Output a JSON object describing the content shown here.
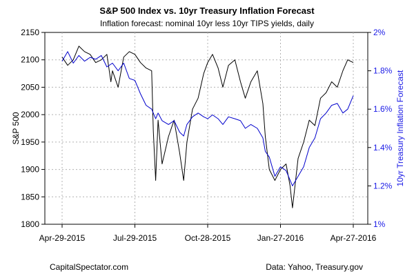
{
  "chart_data": {
    "type": "line",
    "title": "S&P 500 Index vs. 10yr Treasury Inflation Forecast",
    "subtitle": "Inflation forecast: nominal 10yr less 10yr TIPS yields, daily",
    "ylabel": "S&P 500",
    "y2label": "10yr Treasury Inflation Forecast",
    "ylim": [
      1800,
      2150
    ],
    "y2lim": [
      1.0,
      2.0
    ],
    "yticks": [
      "1800",
      "1850",
      "1900",
      "1950",
      "2000",
      "2050",
      "2100",
      "2150"
    ],
    "y2ticks": [
      "1%",
      "1.2%",
      "1.4%",
      "1.6%",
      "1.8%",
      "2%"
    ],
    "xticks": [
      "Apr-29-2015",
      "Jul-29-2015",
      "Oct-28-2015",
      "Jan-27-2016",
      "Apr-27-2016"
    ],
    "grid": true,
    "colors": {
      "sp500": "#000000",
      "inflation": "#0000cc",
      "right_axis": "#1a1ae6"
    },
    "series": [
      {
        "axis": "left",
        "x": [
          "2015-04-29",
          "2015-05-06",
          "2015-05-13",
          "2015-05-20",
          "2015-05-27",
          "2015-06-03",
          "2015-06-10",
          "2015-06-17",
          "2015-06-24",
          "2015-06-29",
          "2015-07-01",
          "2015-07-08",
          "2015-07-15",
          "2015-07-22",
          "2015-07-29",
          "2015-08-05",
          "2015-08-12",
          "2015-08-19",
          "2015-08-21",
          "2015-08-24",
          "2015-08-27",
          "2015-09-01",
          "2015-09-09",
          "2015-09-16",
          "2015-09-23",
          "2015-09-28",
          "2015-10-02",
          "2015-10-09",
          "2015-10-16",
          "2015-10-23",
          "2015-10-28",
          "2015-11-03",
          "2015-11-10",
          "2015-11-16",
          "2015-11-23",
          "2015-12-01",
          "2015-12-08",
          "2015-12-14",
          "2015-12-21",
          "2015-12-29",
          "2016-01-05",
          "2016-01-08",
          "2016-01-13",
          "2016-01-20",
          "2016-01-27",
          "2016-02-03",
          "2016-02-08",
          "2016-02-11",
          "2016-02-18",
          "2016-02-25",
          "2016-03-03",
          "2016-03-10",
          "2016-03-17",
          "2016-03-24",
          "2016-03-31",
          "2016-04-07",
          "2016-04-14",
          "2016-04-20",
          "2016-04-27"
        ],
        "values": [
          2105,
          2090,
          2100,
          2125,
          2115,
          2110,
          2095,
          2100,
          2110,
          2060,
          2080,
          2050,
          2105,
          2115,
          2110,
          2095,
          2085,
          2080,
          1970,
          1880,
          1990,
          1910,
          1960,
          1990,
          1930,
          1880,
          1950,
          2010,
          2030,
          2075,
          2095,
          2110,
          2085,
          2050,
          2090,
          2100,
          2060,
          2030,
          2060,
          2080,
          2020,
          1960,
          1900,
          1880,
          1900,
          1910,
          1870,
          1830,
          1920,
          1950,
          1990,
          1980,
          2030,
          2040,
          2060,
          2050,
          2080,
          2100,
          2095
        ]
      },
      {
        "axis": "right",
        "x": [
          "2015-04-29",
          "2015-05-06",
          "2015-05-13",
          "2015-05-20",
          "2015-05-27",
          "2015-06-03",
          "2015-06-10",
          "2015-06-17",
          "2015-06-24",
          "2015-07-01",
          "2015-07-08",
          "2015-07-15",
          "2015-07-22",
          "2015-07-29",
          "2015-08-05",
          "2015-08-12",
          "2015-08-19",
          "2015-08-24",
          "2015-08-27",
          "2015-09-01",
          "2015-09-09",
          "2015-09-16",
          "2015-09-23",
          "2015-09-28",
          "2015-10-02",
          "2015-10-09",
          "2015-10-16",
          "2015-10-23",
          "2015-10-28",
          "2015-11-03",
          "2015-11-10",
          "2015-11-16",
          "2015-11-23",
          "2015-12-01",
          "2015-12-08",
          "2015-12-14",
          "2015-12-21",
          "2015-12-29",
          "2016-01-05",
          "2016-01-08",
          "2016-01-13",
          "2016-01-20",
          "2016-01-27",
          "2016-02-03",
          "2016-02-11",
          "2016-02-18",
          "2016-02-25",
          "2016-03-03",
          "2016-03-10",
          "2016-03-17",
          "2016-03-24",
          "2016-03-31",
          "2016-04-07",
          "2016-04-14",
          "2016-04-20",
          "2016-04-27"
        ],
        "values": [
          1.85,
          1.9,
          1.84,
          1.88,
          1.85,
          1.87,
          1.86,
          1.88,
          1.82,
          1.84,
          1.8,
          1.84,
          1.76,
          1.75,
          1.68,
          1.62,
          1.6,
          1.55,
          1.58,
          1.54,
          1.52,
          1.54,
          1.48,
          1.46,
          1.52,
          1.56,
          1.58,
          1.56,
          1.55,
          1.57,
          1.55,
          1.52,
          1.56,
          1.55,
          1.54,
          1.5,
          1.52,
          1.5,
          1.45,
          1.38,
          1.35,
          1.25,
          1.3,
          1.28,
          1.2,
          1.25,
          1.3,
          1.4,
          1.45,
          1.55,
          1.58,
          1.62,
          1.63,
          1.58,
          1.6,
          1.67
        ]
      }
    ]
  },
  "footer": {
    "left": "CapitalSpectator.com",
    "right": "Data: Yahoo, Treasury.gov"
  }
}
